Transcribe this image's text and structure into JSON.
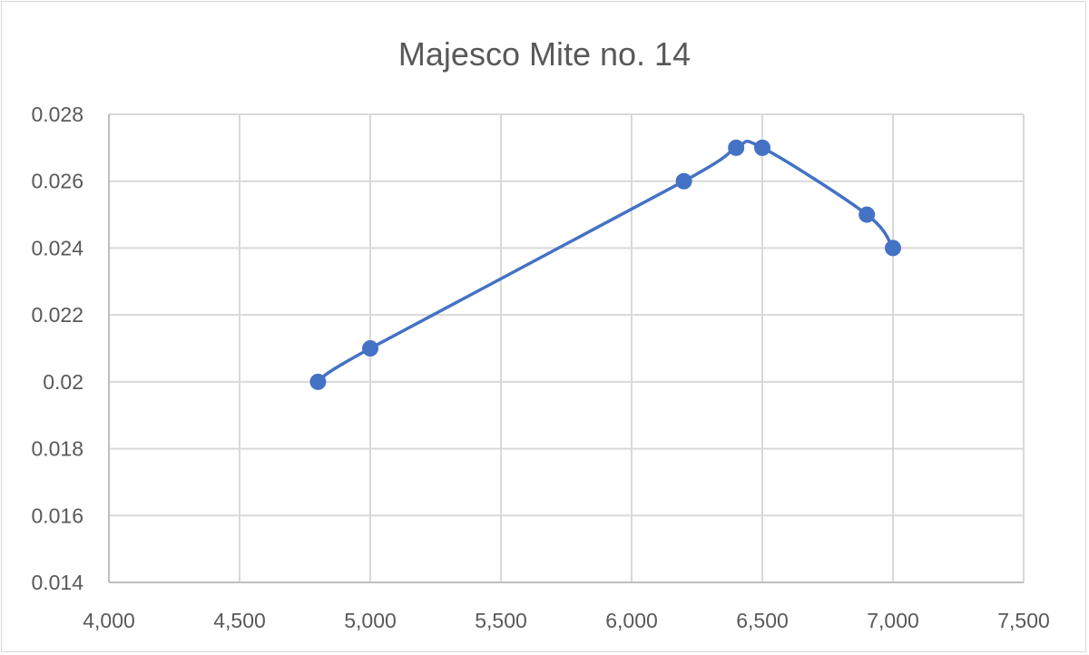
{
  "chart_data": {
    "type": "scatter",
    "title": "Majesco Mite no. 14",
    "xlabel": "",
    "ylabel": "",
    "xlim": [
      4000,
      7500
    ],
    "ylim": [
      0.014,
      0.028
    ],
    "x_ticks": [
      4000,
      4500,
      5000,
      5500,
      6000,
      6500,
      7000,
      7500
    ],
    "x_tick_labels": [
      "4,000",
      "4,500",
      "5,000",
      "5,500",
      "6,000",
      "6,500",
      "7,000",
      "7,500"
    ],
    "y_ticks": [
      0.014,
      0.016,
      0.018,
      0.02,
      0.022,
      0.024,
      0.026,
      0.028
    ],
    "y_tick_labels": [
      "0.014",
      "0.016",
      "0.018",
      "0.02",
      "0.022",
      "0.024",
      "0.026",
      "0.028"
    ],
    "grid": true,
    "legend": "none",
    "smoothed_line": true,
    "series": [
      {
        "color": "#4472c4",
        "x": [
          4800,
          5000,
          6200,
          6400,
          6500,
          6900,
          7000
        ],
        "y": [
          0.02,
          0.021,
          0.026,
          0.027,
          0.027,
          0.025,
          0.024
        ]
      }
    ]
  }
}
